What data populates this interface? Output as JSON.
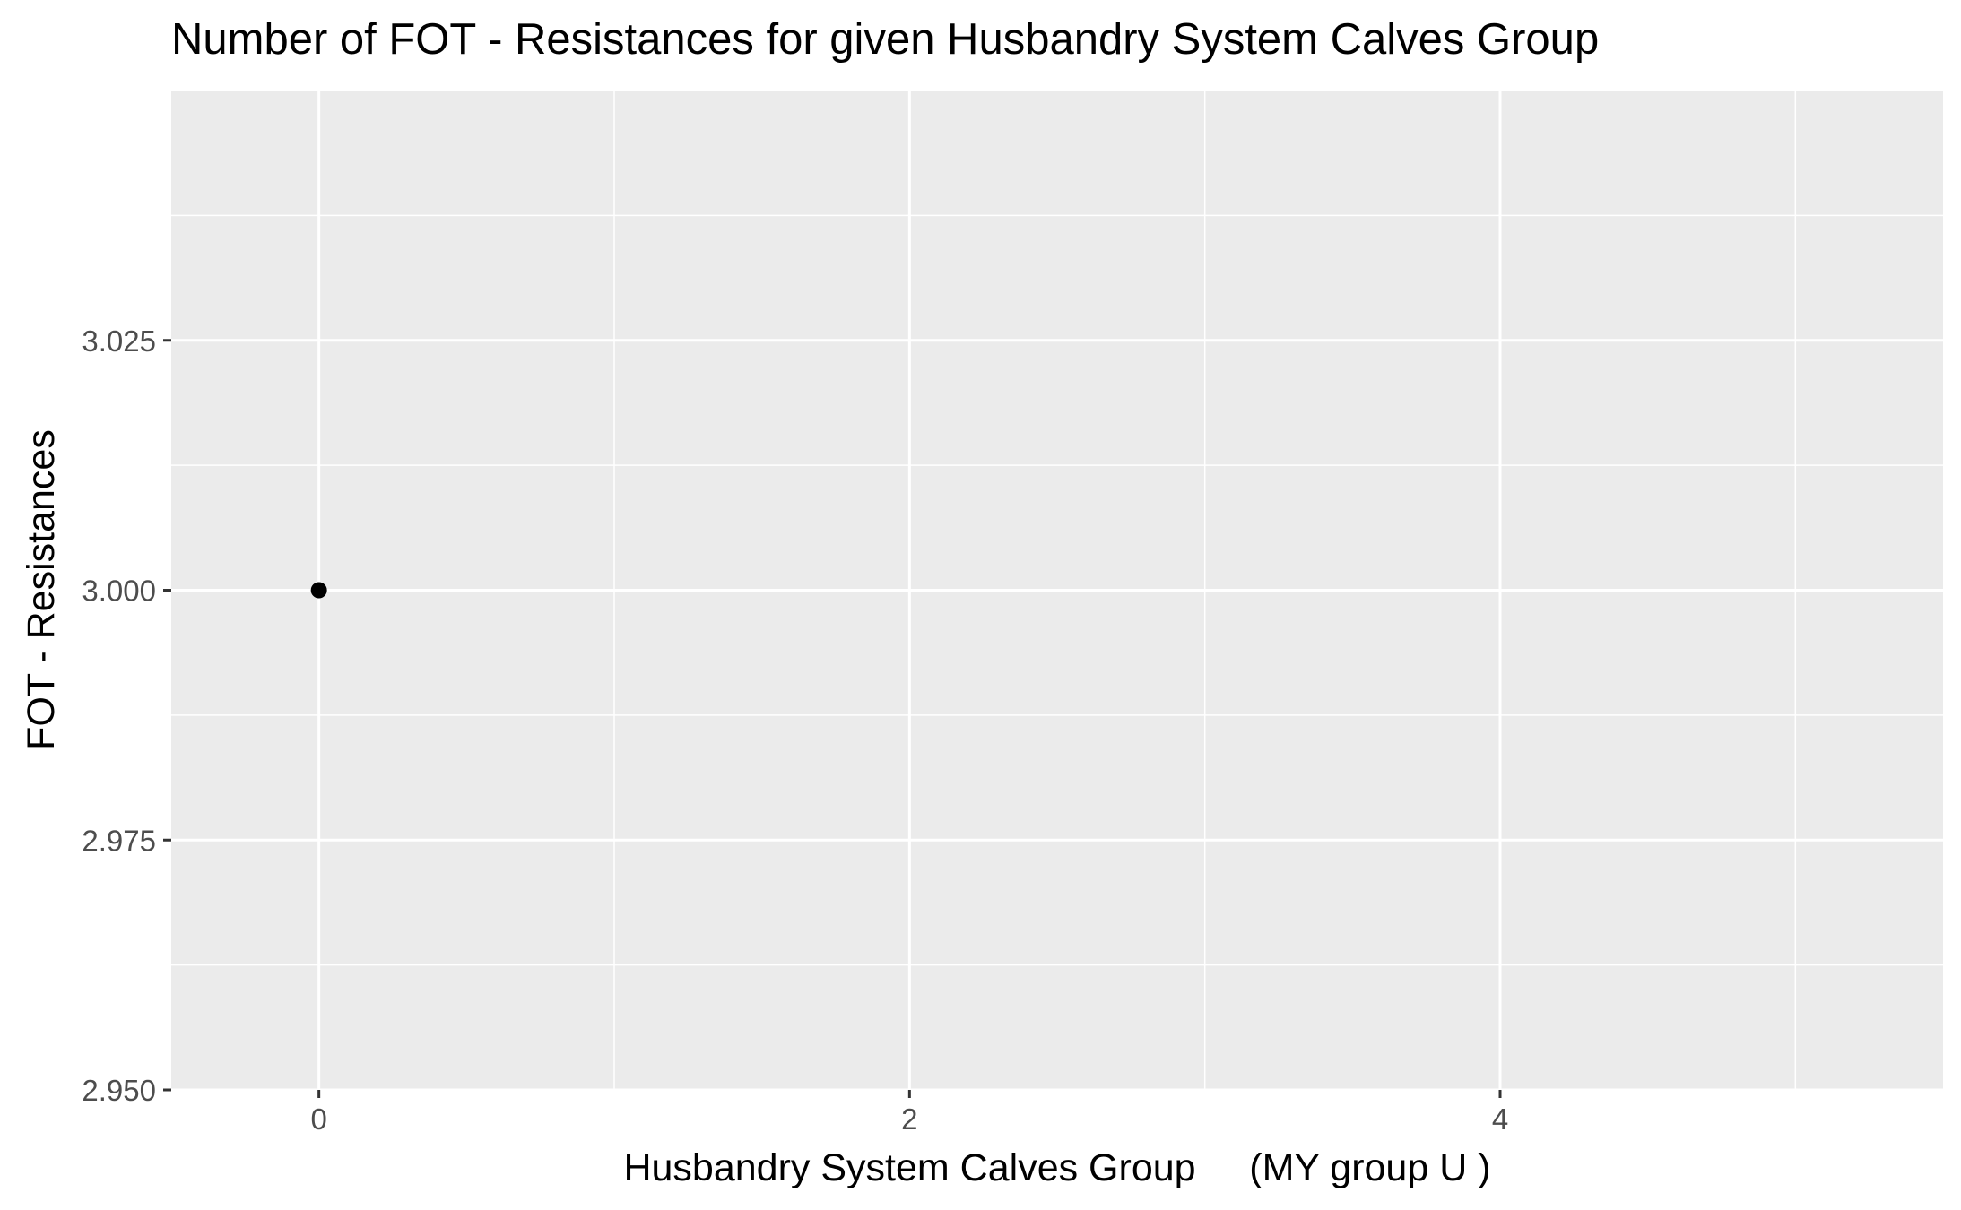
{
  "chart_data": {
    "type": "scatter",
    "title": "Number of FOT - Resistances for given Husbandry System Calves Group",
    "xlabel": "Husbandry System Calves Group     (MY group U )",
    "ylabel": "FOT - Resistances",
    "xlim": [
      -0.5,
      5.5
    ],
    "ylim": [
      2.95,
      3.05
    ],
    "x_ticks": [
      0,
      2,
      4
    ],
    "x_tick_labels": [
      "0",
      "2",
      "4"
    ],
    "x_minor_ticks": [
      1,
      3,
      5
    ],
    "y_ticks": [
      2.95,
      2.975,
      3.0,
      3.025
    ],
    "y_tick_labels": [
      "2.950",
      "2.975",
      "3.000",
      "3.025"
    ],
    "y_minor_ticks": [
      2.9625,
      2.9875,
      3.0125,
      3.0375
    ],
    "points": [
      {
        "x": 0,
        "y": 3.0
      }
    ],
    "grid": true,
    "legend": "none",
    "colors": {
      "panel": "#ebebeb",
      "grid": "#ffffff",
      "point": "#000000",
      "tick_text": "#4d4d4d"
    }
  }
}
